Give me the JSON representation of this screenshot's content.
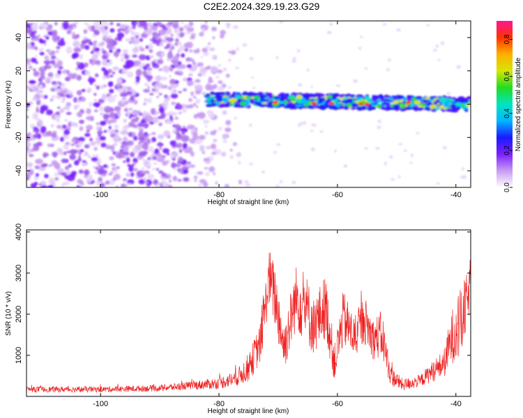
{
  "title": "C2E2.2024.329.19.23.G29",
  "chart_data": [
    {
      "type": "heatmap",
      "title": "C2E2.2024.329.19.23.G29",
      "xlabel": "Height of straight line (km)",
      "ylabel": "Frequency (Hz)",
      "xlim": [
        -112.5,
        -37.5
      ],
      "ylim": [
        -50,
        50
      ],
      "x_ticks": [
        -100,
        -80,
        -60,
        -40
      ],
      "y_ticks": [
        -40,
        -20,
        0,
        20,
        40
      ],
      "description_bands": {
        "noise_region_x": [
          -112.5,
          -80
        ],
        "signal_band_center_hz": [
          3,
          0
        ],
        "signal_x": [
          -82,
          -37.5
        ]
      },
      "colorbar": {
        "label": "Normalized spectral amplitude",
        "range": [
          0.0,
          0.9
        ],
        "ticks": [
          0.0,
          0.2,
          0.4,
          0.6,
          0.8
        ],
        "colors": [
          "#ffffff",
          "#c79cf2",
          "#7b1fff",
          "#1a1aff",
          "#00b7ff",
          "#00e5c0",
          "#22dd22",
          "#d6e600",
          "#ffb000",
          "#ff3300",
          "#ff1493"
        ]
      },
      "grid": false
    },
    {
      "type": "line",
      "xlabel": "Height of straight line (km)",
      "ylabel": "SNR (10 * v/v)",
      "xlim": [
        -112.5,
        -37.5
      ],
      "ylim": [
        0,
        4050
      ],
      "x_ticks": [
        -100,
        -80,
        -60,
        -40
      ],
      "y_ticks": [
        1000,
        2000,
        3000,
        4000
      ],
      "color": "#ee2222",
      "grid": false,
      "envelope": {
        "x": [
          -112.5,
          -100,
          -90,
          -85,
          -80,
          -77,
          -75,
          -73,
          -71.5,
          -70.5,
          -69,
          -67,
          -65.5,
          -64,
          -62,
          -60.5,
          -59,
          -57,
          -55.5,
          -54,
          -52.5,
          -51,
          -49,
          -46,
          -44,
          -42,
          -40.5,
          -39,
          -37.5
        ],
        "center": [
          170,
          170,
          200,
          260,
          320,
          450,
          700,
          1300,
          2900,
          2400,
          1200,
          2400,
          2200,
          1700,
          2200,
          800,
          1900,
          1400,
          1900,
          1400,
          1500,
          500,
          280,
          380,
          600,
          800,
          1500,
          1800,
          2700
        ],
        "spread": [
          70,
          70,
          80,
          100,
          140,
          200,
          350,
          500,
          700,
          800,
          600,
          800,
          900,
          700,
          800,
          450,
          700,
          500,
          600,
          500,
          600,
          250,
          150,
          150,
          250,
          350,
          700,
          900,
          500
        ]
      }
    }
  ]
}
